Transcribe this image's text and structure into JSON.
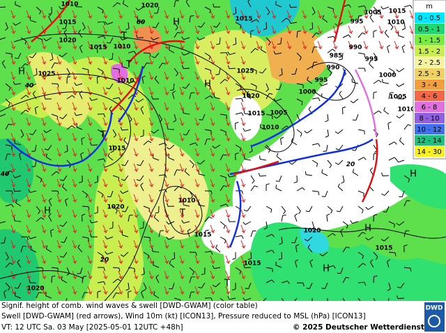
{
  "legend": {
    "unit": "m",
    "entries": [
      {
        "label": "0 - 0.5",
        "color": "#00e8ff"
      },
      {
        "label": "0.5 - 1",
        "color": "#20d870"
      },
      {
        "label": "1 - 1.5",
        "color": "#78ec40"
      },
      {
        "label": "1.5 - 2",
        "color": "#c8ee50"
      },
      {
        "label": "2 - 2.5",
        "color": "#f4f4a0"
      },
      {
        "label": "2.5 - 3",
        "color": "#f0d060"
      },
      {
        "label": "3 - 4",
        "color": "#f0a040"
      },
      {
        "label": "4 - 6",
        "color": "#f06848"
      },
      {
        "label": "6 - 8",
        "color": "#e070e0"
      },
      {
        "label": "8 - 10",
        "color": "#9060e0"
      },
      {
        "label": "10 - 12",
        "color": "#4070f0"
      },
      {
        "label": "12 - 14",
        "color": "#20c080"
      },
      {
        "label": "14 - 30",
        "color": "#f8f020"
      }
    ]
  },
  "pressure_labels": [
    "1010",
    "1020",
    "1015",
    "1020",
    "1015",
    "1010",
    "1025",
    "1010",
    "1015",
    "1025",
    "1020",
    "1015",
    "1005",
    "1010",
    "1015",
    "1020",
    "1010",
    "1015",
    "1020",
    "1015",
    "1015",
    "1020",
    "995",
    "1010",
    "1015",
    "1005",
    "1000",
    "1005",
    "1010",
    "995",
    "990",
    "995",
    "1000",
    "985",
    "990"
  ],
  "contour_labels": [
    "60",
    "40",
    "40",
    "20",
    "20"
  ],
  "centers": [
    "H",
    "H",
    "T",
    "T",
    "H",
    "T",
    "H",
    "T",
    "H",
    "H",
    "T",
    "H"
  ],
  "footer": {
    "line1": "Signif. height of comb. wind waves & swell [DWD-GWAM] (color table)",
    "line2": "Swell [DWD-GWAM] (red arrows), Wind 10m (kt) [ICON13], Pressure reduced to MSL (hPa) [ICON13]",
    "line3": "VT: 12 UTC Sa. 03 May [2025-05-01 12UTC +48h]",
    "copyright": "© 2025 Deutscher Wetterdienst",
    "logo": "DWD"
  }
}
